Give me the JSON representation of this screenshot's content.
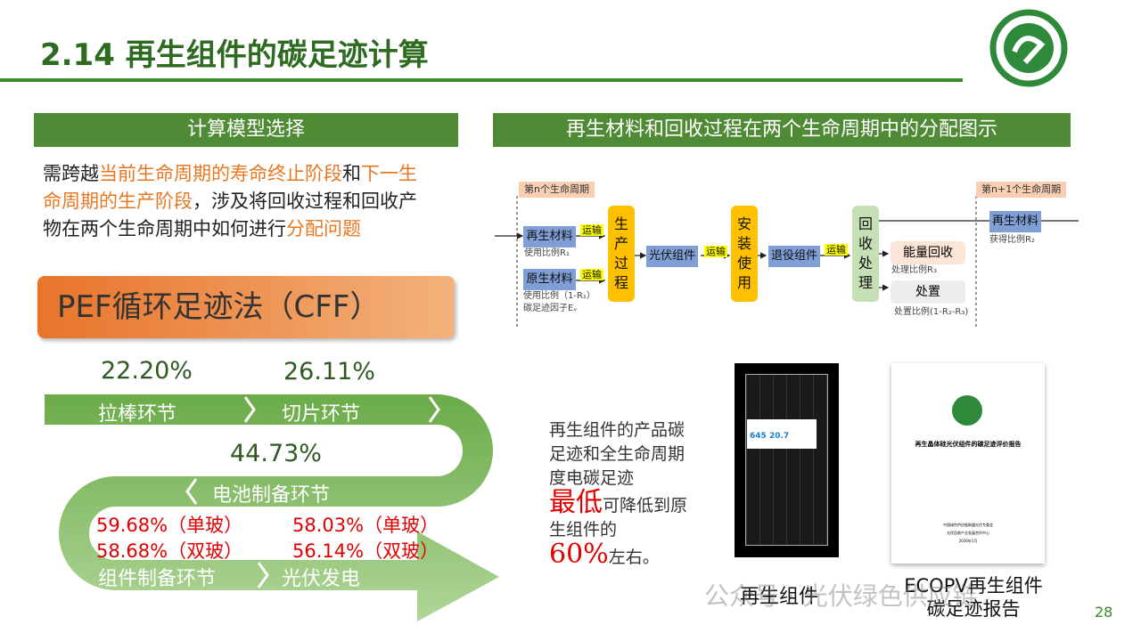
{
  "title": "2.14 再生组件的碳足迹计算",
  "left": {
    "header": "计算模型选择",
    "desc": {
      "p1": "需跨越",
      "h1": "当前生命周期的寿命终止阶段",
      "p2": "和",
      "h2": "下一生命周期的生产阶段",
      "p3": "，涉及将回收过程和回收产物在两个生命周期中如何进行",
      "h3": "分配问题"
    },
    "cff": "PEF循环足迹法（CFF）",
    "steps": [
      {
        "label": "拉棒环节",
        "pct": "22.20%"
      },
      {
        "label": "切片环节",
        "pct": "26.11%"
      },
      {
        "label": "电池制备环节",
        "pct": "44.73%"
      },
      {
        "label": "组件制备环节",
        "pct": [
          "59.68%（单玻）",
          "58.68%（双玻）"
        ]
      },
      {
        "label": "光伏发电",
        "pct": [
          "58.03%（单玻）",
          "56.14%（双玻）"
        ]
      }
    ]
  },
  "right": {
    "header": "再生材料和回收过程在两个生命周期中的分配图示",
    "diagram": {
      "cycle_n": "第n个生命周期",
      "cycle_n1": "第n+1个生命周期",
      "recycled": "再生材料",
      "recycled_note": "使用比例R₁",
      "virgin": "原生材料",
      "virgin_note1": "使用比例（1-R₁）",
      "virgin_note2": "碳足迹因子Eᵥ",
      "transport": "运输",
      "production": "生产过程",
      "module": "光伏组件",
      "install": "安装使用",
      "retired": "退役组件",
      "recycle": "回收处理",
      "energy": "能量回收",
      "energy_note": "处理比例R₃",
      "disposal": "处置",
      "disposal_note": "处置比例(1-R₂-R₃)",
      "out": "再生材料",
      "out_note": "获得比例R₂"
    },
    "summary": {
      "t1": "再生组件的产品碳足迹和全生命周期度电碳足迹",
      "big": "最低",
      "t2": "可降低到原生组件的",
      "pct": "60%",
      "t3": "左右。"
    },
    "img1_caption": "再生组件",
    "img2_caption": "ECOPV再生组件碳足迹报告",
    "report": {
      "title": "再生晶体硅光伏组件的碳足迹评价报告",
      "org1": "中国绿色供应链联盟光伏专委会",
      "org2": "光伏回收产业发展合作中心",
      "date": "2026年1月"
    },
    "panel": {
      "v1": "645",
      "v2": "20.7"
    }
  },
  "watermark": "公众号 · 光伏绿色供应链",
  "page_number": "28",
  "colors": {
    "green": "#4f8a34",
    "orange": "#e8742a",
    "red": "#e00000"
  }
}
